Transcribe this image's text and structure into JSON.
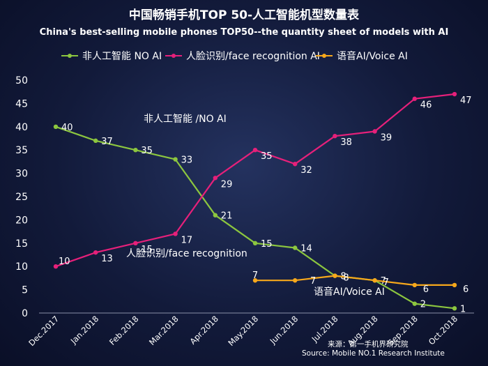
{
  "chart_data": {
    "type": "line",
    "title": "中国畅销手机TOP 50-人工智能机型数量表",
    "subtitle": "China's best-selling mobile phones TOP50--the quantity sheet of models with AI",
    "x": [
      "Dec.2017",
      "Jan.2018",
      "Feb.2018",
      "Mar.2018",
      "Apr.2018",
      "May.2018",
      "Jun.2018",
      "Jul.2018",
      "Aug.2018",
      "Sep.2018",
      "Oct.2018"
    ],
    "ylim": [
      0,
      50
    ],
    "yticks": [
      "0",
      "5",
      "10",
      "15",
      "20",
      "25",
      "30",
      "35",
      "40",
      "45",
      "50"
    ],
    "grid": false,
    "legend_position": "top",
    "series": [
      {
        "name": "非人工智能  NO AI",
        "color": "#8cc63f",
        "values": [
          40,
          37,
          35,
          33,
          21,
          15,
          14,
          8,
          7,
          2,
          1
        ]
      },
      {
        "name": "人脸识别/face recognition AI",
        "color": "#e6207a",
        "values": [
          10,
          13,
          15,
          17,
          29,
          35,
          32,
          38,
          39,
          46,
          47
        ]
      },
      {
        "name": "语音AI/Voice AI",
        "color": "#f7a81b",
        "values": [
          null,
          null,
          null,
          null,
          null,
          7,
          7,
          8,
          7,
          6,
          6
        ]
      }
    ],
    "annotations": [
      "非人工智能 /NO AI",
      "人脸识别/face recognition",
      "语音AI/Voice AI"
    ],
    "source": [
      "来源：第一手机界研究院",
      "Source: Mobile NO.1 Research Institute"
    ]
  }
}
